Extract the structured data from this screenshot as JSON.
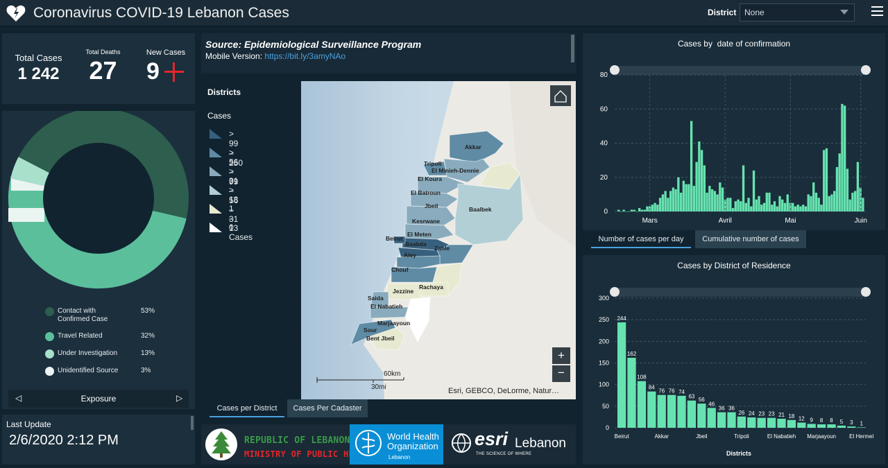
{
  "header": {
    "title": "Coronavirus COVID-19 Lebanon Cases",
    "district_label": "District",
    "district_value": "None"
  },
  "stats": {
    "total_cases_label": "Total Cases",
    "total_cases_value": "1 242",
    "total_deaths_label": "Total Deaths",
    "total_deaths_value": "27",
    "new_cases_label": "New Cases",
    "new_cases_value": "9"
  },
  "exposure": {
    "title": "Exposure",
    "items": [
      {
        "label": "Contact with Confirmed Case",
        "pct": "53%",
        "color": "#2e5e4e"
      },
      {
        "label": "Travel Related",
        "pct": "32%",
        "color": "#5cbf9b"
      },
      {
        "label": "Under Investigation",
        "pct": "13%",
        "color": "#a8e0cc"
      },
      {
        "label": "Unidentified Source",
        "pct": "3%",
        "color": "#eaf4f1"
      }
    ]
  },
  "last_update": {
    "label": "Last Update",
    "value": "2/6/2020 2:12 PM"
  },
  "source": {
    "title": "Source: Epidemiological Surveillance Program",
    "mobile_label": "Mobile Version:",
    "mobile_link": "https://bit.ly/3amyNAo"
  },
  "map": {
    "legend_title": "Districts",
    "legend_subtitle": "Cases",
    "legend": [
      {
        "label": "> 99 – 250",
        "color": "#36607e"
      },
      {
        "label": "> 56 – 99",
        "color": "#5f8ba4"
      },
      {
        "label": "> 31 – 56",
        "color": "#89abbd"
      },
      {
        "label": "> 13 – 31",
        "color": "#b3cfd6"
      },
      {
        "label": "1 – 13",
        "color": "#e7ead0"
      },
      {
        "label": "0 Cases",
        "color": "#ffffff"
      }
    ],
    "districts": [
      "Akkar",
      "Tripoli",
      "El Minieh-Dennie",
      "El Koura",
      "El Batroun",
      "Jbeil",
      "Baalbek",
      "Kesrwane",
      "Beirut",
      "El Meten",
      "Baabda",
      "Zahle",
      "Aley",
      "Chouf",
      "Rachaya",
      "Jezzine",
      "Saida",
      "El Nabatieh",
      "Marjaayoun",
      "Sour",
      "Bent Jbeil"
    ],
    "scale_km": "60km",
    "scale_mi": "30mi",
    "attribution": "Esri, GEBCO, DeLorme, Natur…",
    "zoom_in": "+",
    "zoom_out": "−",
    "tabs": [
      "Cases per District",
      "Cases Per Cadaster"
    ]
  },
  "footer_logos": {
    "lebanon_line1": "REPUBLIC OF LEBANON",
    "lebanon_line2": "MINISTRY OF PUBLIC HEALTH",
    "who_line1": "World Health",
    "who_line2": "Organization",
    "who_line3": "Lebanon",
    "esri_name": "esri",
    "esri_country": "Lebanon",
    "esri_tagline": "THE SCIENCE OF WHERE"
  },
  "chart_data": [
    {
      "type": "bar",
      "title": "Cases by  date of confirmation",
      "x_tick_labels": [
        "Mars",
        "Avril",
        "Mai",
        "Juin"
      ],
      "ylim": [
        0,
        80
      ],
      "yticks": [
        0,
        20,
        40,
        60,
        80
      ],
      "grid": true,
      "values": [
        1,
        0,
        1,
        0,
        0,
        1,
        1,
        0,
        2,
        1,
        1,
        3,
        3,
        4,
        5,
        4,
        8,
        10,
        12,
        8,
        12,
        14,
        13,
        20,
        11,
        18,
        16,
        16,
        53,
        15,
        29,
        41,
        36,
        27,
        11,
        15,
        13,
        12,
        10,
        17,
        14,
        7,
        8,
        8,
        2,
        6,
        7,
        6,
        27,
        5,
        8,
        3,
        24,
        7,
        9,
        4,
        5,
        11,
        11,
        4,
        6,
        3,
        9,
        7,
        5,
        10,
        5,
        5,
        3,
        4,
        3,
        4,
        3,
        10,
        9,
        17,
        11,
        8,
        4,
        36,
        37,
        9,
        10,
        12,
        26,
        34,
        63,
        62,
        25,
        7,
        11,
        12,
        29,
        14,
        8
      ],
      "tabs": [
        "Number of cases per day",
        "Cumulative number of cases"
      ]
    },
    {
      "type": "bar",
      "title": "Cases by District of Residence",
      "xlabel": "Districts",
      "categories": [
        "Beirut",
        "",
        "",
        "",
        "Akkar",
        "",
        "",
        "",
        "Jbeil",
        "",
        "",
        "",
        "Tripoli",
        "",
        "",
        "",
        "El Nabatieh",
        "",
        "",
        "",
        "Marjaayoun",
        "",
        "",
        "",
        "El Hermel"
      ],
      "values": [
        244,
        162,
        108,
        84,
        76,
        76,
        74,
        63,
        56,
        46,
        36,
        36,
        26,
        24,
        23,
        23,
        21,
        18,
        12,
        9,
        8,
        8,
        5,
        3,
        1
      ],
      "ylim": [
        0,
        300
      ],
      "yticks": [
        0,
        50,
        100,
        150,
        200,
        250,
        300
      ]
    }
  ],
  "colors": {
    "bar": "#66e3b0",
    "panel": "#1c2f3d",
    "accent_red": "#e4262b"
  }
}
